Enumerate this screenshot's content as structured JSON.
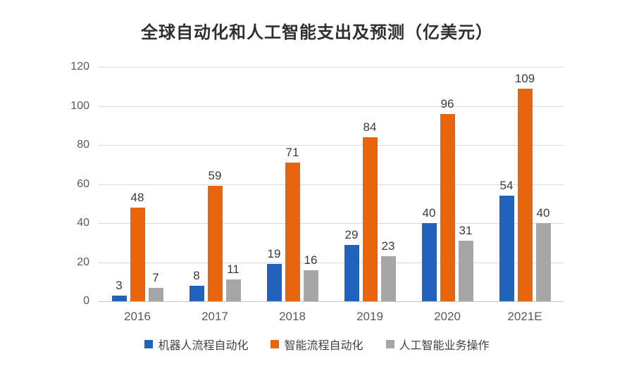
{
  "title": "全球自动化和人工智能支出及预测（亿美元）",
  "chart_data": {
    "type": "bar",
    "title": "全球自动化和人工智能支出及预测（亿美元）",
    "categories": [
      "2016",
      "2017",
      "2018",
      "2019",
      "2020",
      "2021E"
    ],
    "series": [
      {
        "name": "机器人流程自动化",
        "color": "#2062bc",
        "values": [
          3,
          8,
          19,
          29,
          40,
          54
        ]
      },
      {
        "name": "智能流程自动化",
        "color": "#e8650d",
        "values": [
          48,
          59,
          71,
          84,
          96,
          109
        ]
      },
      {
        "name": "人工智能业务操作",
        "color": "#a6a6a6",
        "values": [
          7,
          11,
          16,
          23,
          31,
          40
        ]
      }
    ],
    "xlabel": "",
    "ylabel": "",
    "ylim": [
      0,
      120
    ],
    "yticks": [
      0,
      20,
      40,
      60,
      80,
      100,
      120
    ],
    "grid": true,
    "legend_position": "bottom"
  },
  "colors": {
    "gridline": "#d9d9d9",
    "axis_line": "#c3c3c3",
    "tick_label": "#595959",
    "value_label": "#3a3a3a",
    "title": "#2f2f2f",
    "background": "#ffffff"
  }
}
